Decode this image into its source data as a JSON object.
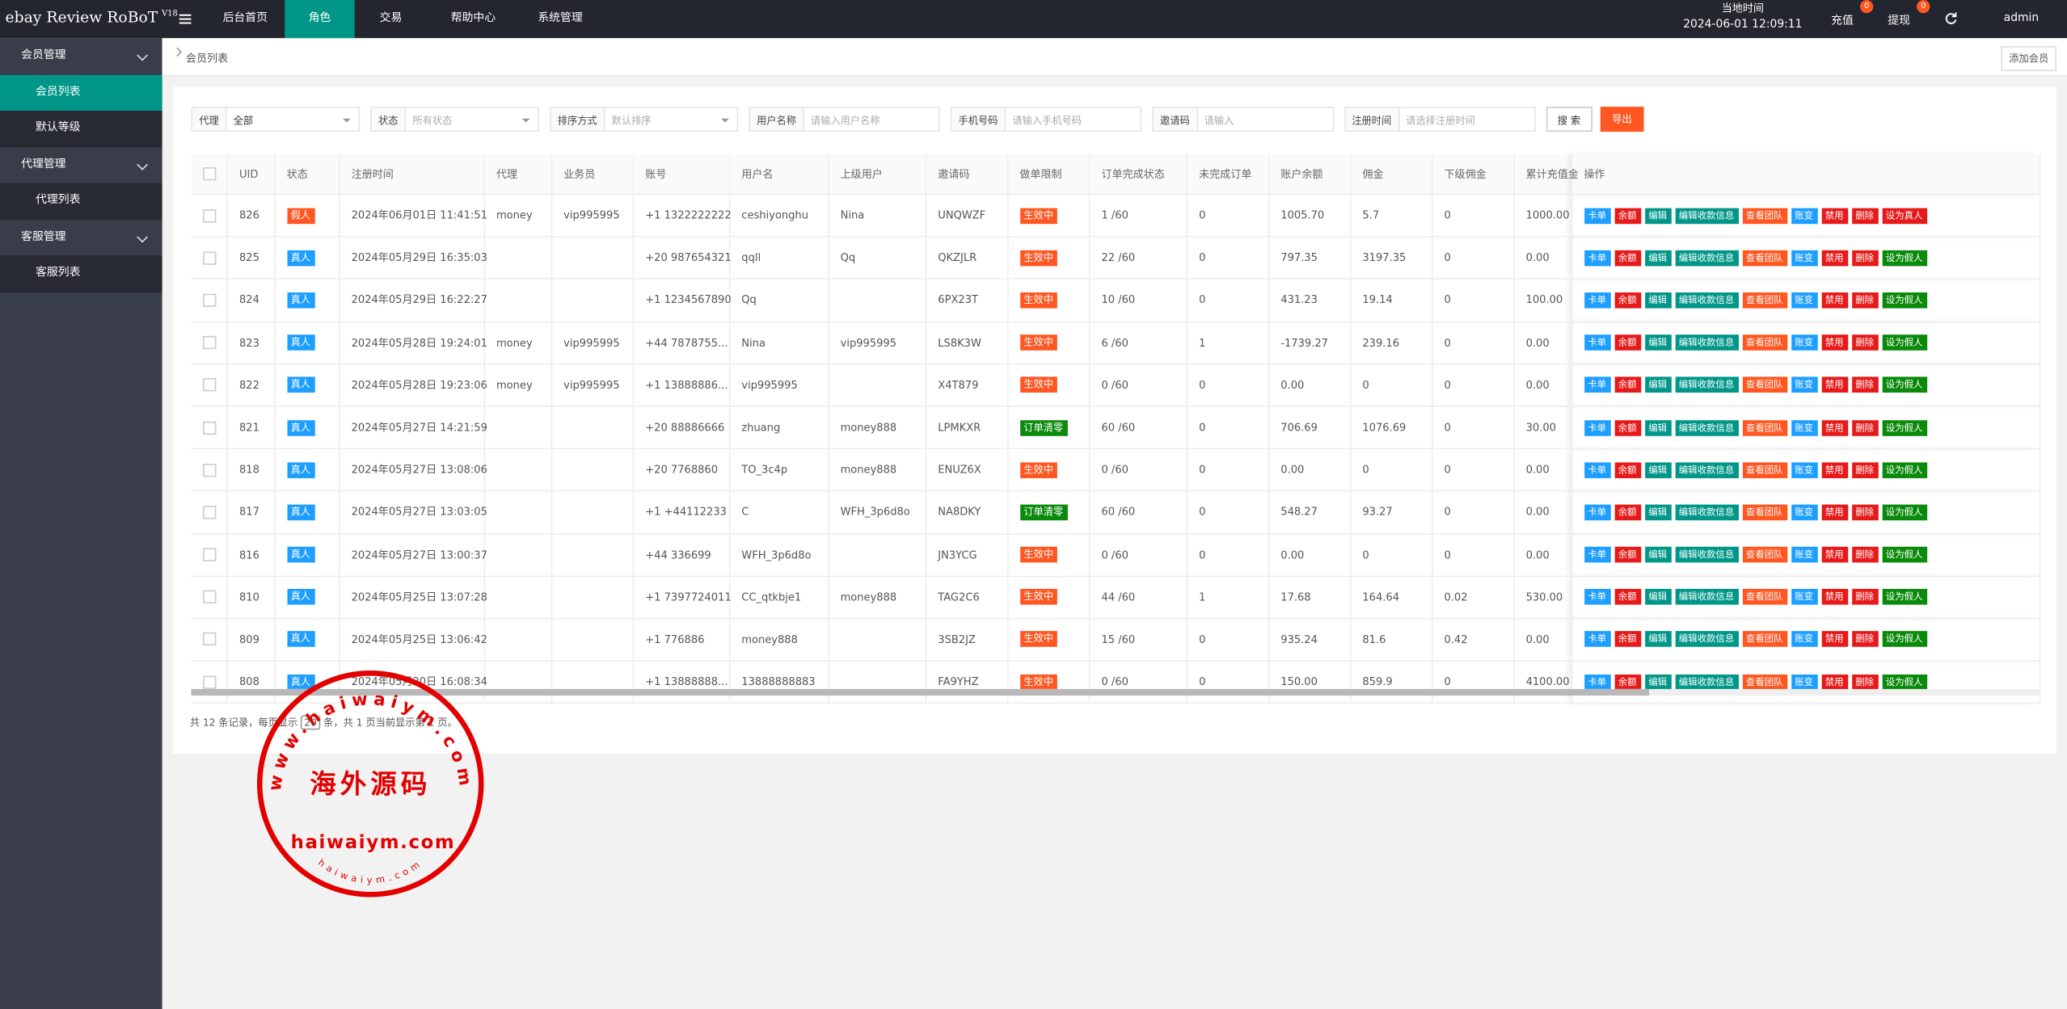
{
  "header": {
    "brand": "ebay Review RoBoT",
    "version": "V18",
    "nav": [
      "后台首页",
      "角色",
      "交易",
      "帮助中心",
      "系统管理"
    ],
    "time_label": "当地时间",
    "time": "2024-06-01 12:09:11",
    "recharge": "充值",
    "recharge_badge": 0,
    "withdraw": "提现",
    "withdraw_badge": 0,
    "user": "admin"
  },
  "sidebar": [
    {
      "label": "会员管理",
      "items": [
        "会员列表",
        "默认等级"
      ]
    },
    {
      "label": "代理管理",
      "items": [
        "代理列表"
      ]
    },
    {
      "label": "客服管理",
      "items": [
        "客服列表"
      ]
    }
  ],
  "breadcrumb": "会员列表",
  "add_button": "添加会员",
  "filters": [
    {
      "label": "代理",
      "value": "全部"
    },
    {
      "label": "状态",
      "placeholder": "所有状态"
    },
    {
      "label": "排序方式",
      "placeholder": "默认排序"
    },
    {
      "label": "用户名称",
      "placeholder": "请输入用户名称"
    },
    {
      "label": "手机号码",
      "placeholder": "请输入手机号码"
    },
    {
      "label": "邀请码",
      "placeholder": "请输入"
    },
    {
      "label": "注册时间",
      "placeholder": "请选择注册时间"
    }
  ],
  "search": "搜 索",
  "export": "导出",
  "table": {
    "columns": [
      "UID",
      "状态",
      "注册时间",
      "代理",
      "业务员",
      "账号",
      "用户名",
      "上级用户",
      "邀请码",
      "做单限制",
      "订单完成状态",
      "未完成订单",
      "账户余额",
      "佣金",
      "下级佣金",
      "累计充值金",
      "操作"
    ],
    "rows": [
      {
        "cells": [
          "826",
          "假人",
          "2024年06月01日 11:41:51",
          "money",
          "vip995995",
          "+1 1322222222",
          "ceshiyonghu",
          "Nina",
          "UNQWZF",
          "生效中",
          "1 /60",
          "0",
          "1005.70",
          "5.7",
          "0",
          "1000.00"
        ],
        "toggle": "设为真人"
      },
      {
        "cells": [
          "825",
          "真人",
          "2024年05月29日 16:35:03",
          null,
          null,
          "+20 987654321",
          "qqll",
          "Qq",
          "QKZJLR",
          "生效中",
          "22 /60",
          "0",
          "797.35",
          "3197.35",
          "0",
          "0.00"
        ],
        "toggle": "设为假人"
      },
      {
        "cells": [
          "824",
          "真人",
          "2024年05月29日 16:22:27",
          null,
          null,
          "+1 1234567890",
          "Qq",
          null,
          "6PX23T",
          "生效中",
          "10 /60",
          "0",
          "431.23",
          "19.14",
          "0",
          "100.00"
        ],
        "toggle": "设为假人"
      },
      {
        "cells": [
          "823",
          "真人",
          "2024年05月28日 19:24:01",
          "money",
          "vip995995",
          "+44 7878755...",
          "Nina",
          "vip995995",
          "LS8K3W",
          "生效中",
          "6 /60",
          "1",
          "-1739.27",
          "239.16",
          "0",
          "0.00"
        ],
        "toggle": "设为假人"
      },
      {
        "cells": [
          "822",
          "真人",
          "2024年05月28日 19:23:06",
          "money",
          "vip995995",
          "+1 13888886...",
          "vip995995",
          null,
          "X4T879",
          "生效中",
          "0 /60",
          "0",
          "0.00",
          "0",
          "0",
          "0.00"
        ],
        "toggle": "设为假人"
      },
      {
        "cells": [
          "821",
          "真人",
          "2024年05月27日 14:21:59",
          null,
          null,
          "+20 88886666",
          "zhuang",
          "money888",
          "LPMKXR",
          "订单清零",
          "60 /60",
          "0",
          "706.69",
          "1076.69",
          "0",
          "30.00"
        ],
        "toggle": "设为假人"
      },
      {
        "cells": [
          "818",
          "真人",
          "2024年05月27日 13:08:06",
          null,
          null,
          "+20 7768860",
          "TO_3c4p",
          "money888",
          "ENUZ6X",
          "生效中",
          "0 /60",
          "0",
          "0.00",
          "0",
          "0",
          "0.00"
        ],
        "toggle": "设为假人"
      },
      {
        "cells": [
          "817",
          "真人",
          "2024年05月27日 13:03:05",
          null,
          null,
          "+1 +44112233",
          "C",
          "WFH_3p6d8o",
          "NA8DKY",
          "订单清零",
          "60 /60",
          "0",
          "548.27",
          "93.27",
          "0",
          "0.00"
        ],
        "toggle": "设为假人"
      },
      {
        "cells": [
          "816",
          "真人",
          "2024年05月27日 13:00:37",
          null,
          null,
          "+44 336699",
          "WFH_3p6d8o",
          null,
          "JN3YCG",
          "生效中",
          "0 /60",
          "0",
          "0.00",
          "0",
          "0",
          "0.00"
        ],
        "toggle": "设为假人"
      },
      {
        "cells": [
          "810",
          "真人",
          "2024年05月25日 13:07:28",
          null,
          null,
          "+1 7397724011",
          "CC_qtkbje1",
          "money888",
          "TAG2C6",
          "生效中",
          "44 /60",
          "1",
          "17.68",
          "164.64",
          "0.02",
          "530.00"
        ],
        "toggle": "设为假人"
      },
      {
        "cells": [
          "809",
          "真人",
          "2024年05月25日 13:06:42",
          null,
          null,
          "+1 776886",
          "money888",
          null,
          "3SB2JZ",
          "生效中",
          "15 /60",
          "0",
          "935.24",
          "81.6",
          "0.42",
          "0.00"
        ],
        "toggle": "设为假人"
      },
      {
        "cells": [
          "808",
          "真人",
          "2024年05月20日 16:08:34",
          null,
          null,
          "+1 13888888...",
          "13888888883",
          null,
          "FA9YHZ",
          "生效中",
          "0 /60",
          "0",
          "150.00",
          "859.9",
          "0",
          "4100.00"
        ],
        "toggle": "设为假人"
      }
    ],
    "actions": [
      "卡单",
      "余额",
      "编辑",
      "编辑收款信息",
      "查看团队",
      "账变",
      "禁用",
      "删除"
    ],
    "action_colors": [
      "#1E9FFF",
      "#E61A1A",
      "#009688",
      "#009688",
      "#FF5722",
      "#1E9FFF",
      "#E61A1A",
      "#E61A1A"
    ],
    "colors": {
      "假人": "#FF5722",
      "真人": "#1E9FFF",
      "生效中": "#FF5722",
      "订单清零": "#0A8A0A",
      "设为真人": "#E61A1A",
      "设为假人": "#0A8A0A"
    }
  },
  "pagination": {
    "prefix": "共 12 条记录，每页显示",
    "page_size": "20",
    "suffix": "条，共 1 页当前显示第 1 页。"
  },
  "watermark": {
    "title": "海外源码",
    "url": "haiwaiym.com",
    "arc_top": "www.haiwaiym.com",
    "arc_bottom": "haiwaiym.com"
  }
}
